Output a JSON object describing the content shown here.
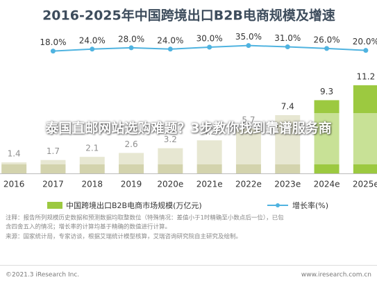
{
  "chart_data": {
    "type": "bar-line",
    "title": "2016-2025年中国跨境出口B2B电商规模及增速",
    "categories": [
      "2016",
      "2017",
      "2018",
      "2019",
      "2020e",
      "2021e",
      "2022e",
      "2023e",
      "2024e",
      "2025e"
    ],
    "series": [
      {
        "name": "中国跨境出口B2B电商市场规模(万亿元)",
        "type": "bar",
        "colors": [
          "#d3d3ad",
          "#d3d3ad",
          "#d3d3ad",
          "#d3d3ad",
          "#d3d3ad",
          "#d3d3ad",
          "#d3d3ad",
          "#d3d3ad",
          "#9cc940",
          "#9cc940"
        ],
        "values": [
          1.4,
          1.7,
          2.1,
          2.6,
          3.2,
          4.2,
          5.7,
          7.4,
          9.3,
          11.2
        ]
      },
      {
        "name": "增长率(%)",
        "type": "line",
        "axis": "y2",
        "color": "#4fb3e0",
        "values": [
          null,
          18,
          24,
          28,
          24,
          30,
          35,
          31,
          26,
          20
        ],
        "value_labels": [
          null,
          "18.0%",
          "24.0%",
          "28.0%",
          "24.0%",
          "30.0%",
          "35.0%",
          "31.0%",
          "26.0%",
          "20.0%"
        ]
      }
    ],
    "ylim": [
      0,
      18.5
    ],
    "y2lim": [
      -360,
      90
    ],
    "notes": [
      "注释：报告所列规模历史数据和预测数据均取整数位（特殊情况：差值小于1时精确至小数点后一位），已包",
      "含四舍五入的情况；增长率的计算均基于精确的数值进行计算。",
      "来源：国家统计局，专家访谈，根据艾瑞统计模型核算，艾瑞咨询研究院自主研究及绘制。"
    ],
    "footer_left": "©2021.3 iResearch Inc.",
    "footer_right": "www.iresearch.com.cn"
  },
  "banner": "泰国直邮网站选购难题？3步教你找到靠谱服务商"
}
